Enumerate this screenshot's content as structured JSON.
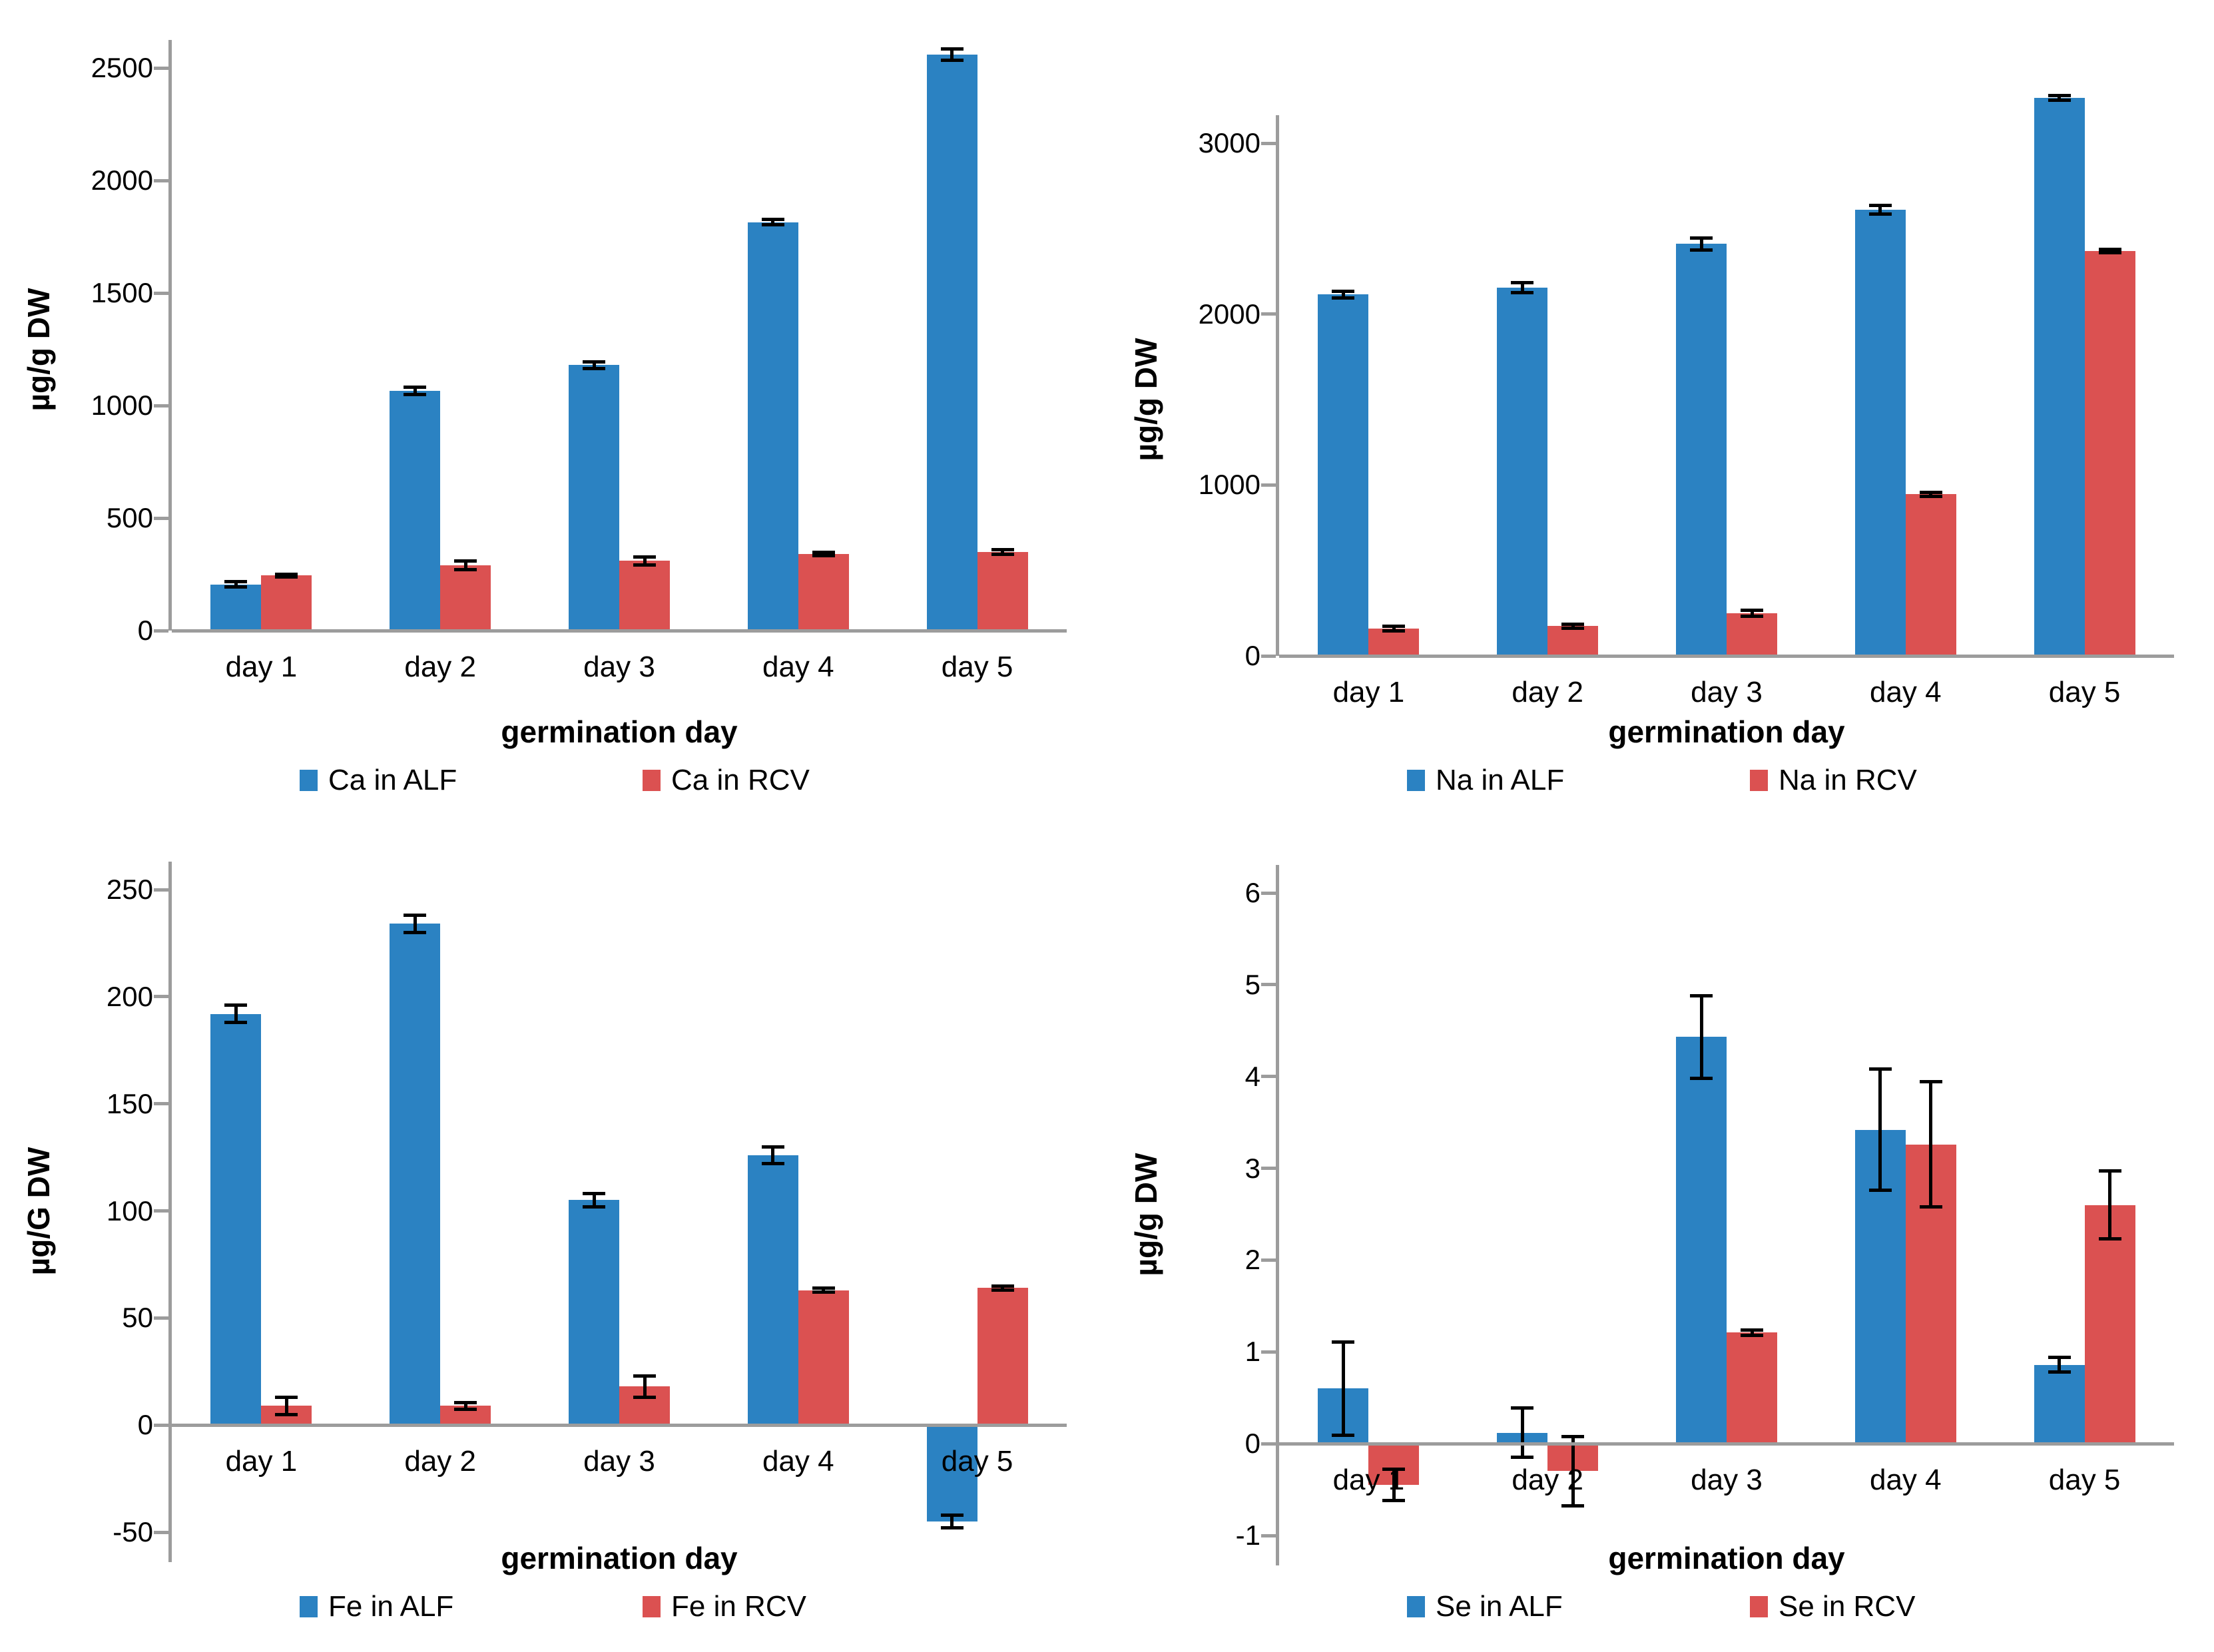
{
  "figure": {
    "background": "#ffffff",
    "accent_blue": "#2B82C2",
    "accent_red": "#DB5151",
    "axis_color": "#9C9C9C"
  },
  "chart_data": [
    {
      "type": "bar",
      "element": "Ca",
      "xlabel": "germination day",
      "ylabel": "µg/g DW",
      "categories": [
        "day 1",
        "day 2",
        "day 3",
        "day 4",
        "day 5"
      ],
      "yticks": [
        0,
        500,
        1000,
        1500,
        2000,
        2500
      ],
      "ylim": [
        0,
        2680
      ],
      "grid": false,
      "legend_position": "bottom",
      "error_bars": true,
      "series": [
        {
          "name": "Ca in ALF",
          "color": "#2B82C2",
          "values": [
            205,
            1065,
            1180,
            1815,
            2560
          ],
          "errors": [
            12,
            15,
            15,
            12,
            25
          ]
        },
        {
          "name": "Ca in RCV",
          "color": "#DB5151",
          "values": [
            245,
            290,
            310,
            340,
            350
          ],
          "errors": [
            6,
            20,
            18,
            8,
            10
          ]
        }
      ]
    },
    {
      "type": "bar",
      "element": "Na",
      "xlabel": "germination day",
      "ylabel": "µg/g DW",
      "categories": [
        "day 1",
        "day 2",
        "day 3",
        "day 4",
        "day 5"
      ],
      "yticks": [
        0,
        1000,
        2000,
        3000
      ],
      "ylim": [
        0,
        3300
      ],
      "grid": false,
      "legend_position": "bottom",
      "error_bars": true,
      "series": [
        {
          "name": "Na in ALF",
          "color": "#2B82C2",
          "values": [
            2115,
            2155,
            2410,
            2610,
            3265
          ],
          "errors": [
            20,
            30,
            35,
            25,
            15
          ]
        },
        {
          "name": "Na in RCV",
          "color": "#DB5151",
          "values": [
            160,
            175,
            250,
            945,
            2370
          ],
          "errors": [
            15,
            12,
            18,
            10,
            10
          ]
        }
      ]
    },
    {
      "type": "bar",
      "element": "Fe",
      "xlabel": "germination day",
      "ylabel": "µg/G DW",
      "categories": [
        "day 1",
        "day 2",
        "day 3",
        "day 4",
        "day 5"
      ],
      "yticks": [
        -50,
        0,
        50,
        100,
        150,
        200,
        250
      ],
      "ylim": [
        -60,
        265
      ],
      "grid": false,
      "legend_position": "bottom",
      "error_bars": true,
      "series": [
        {
          "name": "Fe in ALF",
          "color": "#2B82C2",
          "values": [
            192,
            234,
            105,
            126,
            -45
          ],
          "errors": [
            4,
            4,
            3,
            4,
            3
          ]
        },
        {
          "name": "Fe in RCV",
          "color": "#DB5151",
          "values": [
            9,
            9,
            18,
            63,
            64
          ],
          "errors": [
            4,
            1.5,
            5,
            1,
            1
          ]
        }
      ]
    },
    {
      "type": "bar",
      "element": "Se",
      "xlabel": "germination day",
      "ylabel": "µg/g DW",
      "categories": [
        "day 1",
        "day 2",
        "day 3",
        "day 4",
        "day 5"
      ],
      "yticks": [
        -1,
        0,
        1,
        2,
        3,
        4,
        5,
        6
      ],
      "ylim": [
        -1.3,
        6.2
      ],
      "grid": false,
      "legend_position": "bottom",
      "error_bars": true,
      "series": [
        {
          "name": "Se in ALF",
          "color": "#2B82C2",
          "values": [
            0.6,
            0.12,
            4.43,
            3.42,
            0.86
          ],
          "errors": [
            0.51,
            0.27,
            0.45,
            0.66,
            0.08
          ]
        },
        {
          "name": "Se in RCV",
          "color": "#DB5151",
          "values": [
            -0.45,
            -0.3,
            1.21,
            3.26,
            2.6
          ],
          "errors": [
            0.17,
            0.38,
            0.03,
            0.68,
            0.37
          ]
        }
      ]
    }
  ]
}
